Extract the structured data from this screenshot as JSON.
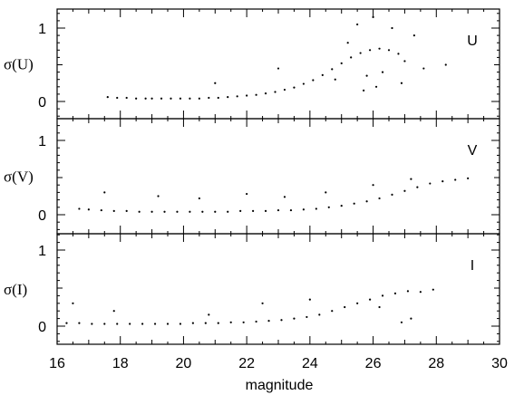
{
  "chart_data": {
    "type": "scatter",
    "xlabel": "magnitude",
    "xlim": [
      16,
      30
    ],
    "x_ticks": [
      "16",
      "18",
      "20",
      "22",
      "24",
      "26",
      "28",
      "30"
    ],
    "grid": false,
    "panels": [
      {
        "id": "U",
        "band_label": "U",
        "ylabel": "σ(U)",
        "ylim": [
          -0.25,
          1.3
        ],
        "y_ticks": [
          "0",
          "1"
        ],
        "series": [
          {
            "values": [
              [
                17.6,
                0.06
              ],
              [
                17.9,
                0.05
              ],
              [
                18.2,
                0.05
              ],
              [
                18.5,
                0.04
              ],
              [
                18.8,
                0.04
              ],
              [
                19.0,
                0.04
              ],
              [
                19.3,
                0.04
              ],
              [
                19.6,
                0.04
              ],
              [
                19.9,
                0.04
              ],
              [
                20.2,
                0.04
              ],
              [
                20.5,
                0.04
              ],
              [
                20.8,
                0.05
              ],
              [
                21.1,
                0.05
              ],
              [
                21.4,
                0.06
              ],
              [
                21.7,
                0.07
              ],
              [
                22.0,
                0.08
              ],
              [
                22.3,
                0.09
              ],
              [
                22.6,
                0.11
              ],
              [
                22.9,
                0.13
              ],
              [
                23.2,
                0.16
              ],
              [
                23.5,
                0.19
              ],
              [
                23.8,
                0.24
              ],
              [
                24.1,
                0.29
              ],
              [
                24.4,
                0.36
              ],
              [
                24.7,
                0.44
              ],
              [
                25.0,
                0.52
              ],
              [
                25.3,
                0.6
              ],
              [
                25.6,
                0.66
              ],
              [
                25.9,
                0.7
              ],
              [
                26.2,
                0.72
              ],
              [
                26.5,
                0.7
              ],
              [
                26.8,
                0.65
              ],
              [
                24.8,
                0.3
              ],
              [
                25.2,
                0.8
              ],
              [
                25.5,
                1.05
              ],
              [
                25.8,
                0.35
              ],
              [
                26.0,
                1.15
              ],
              [
                26.3,
                0.4
              ],
              [
                26.6,
                1.0
              ],
              [
                27.0,
                0.55
              ],
              [
                27.3,
                0.9
              ],
              [
                25.7,
                0.15
              ],
              [
                26.1,
                0.2
              ],
              [
                26.9,
                0.25
              ],
              [
                27.6,
                0.45
              ],
              [
                28.3,
                0.5
              ],
              [
                23.0,
                0.45
              ],
              [
                21.0,
                0.25
              ]
            ]
          }
        ]
      },
      {
        "id": "V",
        "band_label": "V",
        "ylabel": "σ(V)",
        "ylim": [
          -0.25,
          1.3
        ],
        "y_ticks": [
          "0",
          "1"
        ],
        "series": [
          {
            "values": [
              [
                16.7,
                0.08
              ],
              [
                17.0,
                0.07
              ],
              [
                17.4,
                0.06
              ],
              [
                17.8,
                0.05
              ],
              [
                18.2,
                0.05
              ],
              [
                18.6,
                0.04
              ],
              [
                19.0,
                0.04
              ],
              [
                19.4,
                0.04
              ],
              [
                19.8,
                0.04
              ],
              [
                20.2,
                0.04
              ],
              [
                20.6,
                0.04
              ],
              [
                21.0,
                0.04
              ],
              [
                21.4,
                0.04
              ],
              [
                21.8,
                0.05
              ],
              [
                22.2,
                0.05
              ],
              [
                22.6,
                0.05
              ],
              [
                23.0,
                0.06
              ],
              [
                23.4,
                0.06
              ],
              [
                23.8,
                0.07
              ],
              [
                24.2,
                0.08
              ],
              [
                24.6,
                0.1
              ],
              [
                25.0,
                0.12
              ],
              [
                25.4,
                0.15
              ],
              [
                25.8,
                0.18
              ],
              [
                26.2,
                0.22
              ],
              [
                26.6,
                0.27
              ],
              [
                27.0,
                0.32
              ],
              [
                27.4,
                0.37
              ],
              [
                27.8,
                0.42
              ],
              [
                28.2,
                0.45
              ],
              [
                28.6,
                0.47
              ],
              [
                29.0,
                0.49
              ],
              [
                17.5,
                0.3
              ],
              [
                19.2,
                0.25
              ],
              [
                20.5,
                0.22
              ],
              [
                22.0,
                0.28
              ],
              [
                23.2,
                0.24
              ],
              [
                24.5,
                0.3
              ],
              [
                26.0,
                0.4
              ],
              [
                27.2,
                0.48
              ]
            ]
          }
        ]
      },
      {
        "id": "I",
        "band_label": "I",
        "ylabel": "σ(I)",
        "ylim": [
          -0.25,
          1.3
        ],
        "y_ticks": [
          "0",
          "1"
        ],
        "series": [
          {
            "values": [
              [
                16.3,
                0.04
              ],
              [
                16.7,
                0.04
              ],
              [
                17.1,
                0.03
              ],
              [
                17.5,
                0.03
              ],
              [
                17.9,
                0.03
              ],
              [
                18.3,
                0.03
              ],
              [
                18.7,
                0.03
              ],
              [
                19.1,
                0.03
              ],
              [
                19.5,
                0.03
              ],
              [
                19.9,
                0.03
              ],
              [
                20.3,
                0.04
              ],
              [
                20.7,
                0.04
              ],
              [
                21.1,
                0.04
              ],
              [
                21.5,
                0.05
              ],
              [
                21.9,
                0.05
              ],
              [
                22.3,
                0.06
              ],
              [
                22.7,
                0.07
              ],
              [
                23.1,
                0.08
              ],
              [
                23.5,
                0.1
              ],
              [
                23.9,
                0.12
              ],
              [
                24.3,
                0.15
              ],
              [
                24.7,
                0.2
              ],
              [
                25.1,
                0.25
              ],
              [
                25.5,
                0.3
              ],
              [
                25.9,
                0.35
              ],
              [
                26.3,
                0.4
              ],
              [
                26.7,
                0.43
              ],
              [
                27.1,
                0.46
              ],
              [
                27.5,
                0.45
              ],
              [
                27.9,
                0.48
              ],
              [
                16.5,
                0.3
              ],
              [
                17.8,
                0.2
              ],
              [
                20.8,
                0.15
              ],
              [
                22.5,
                0.3
              ],
              [
                24.0,
                0.35
              ],
              [
                26.9,
                0.05
              ],
              [
                27.2,
                0.1
              ],
              [
                26.2,
                0.25
              ]
            ]
          }
        ]
      }
    ]
  }
}
